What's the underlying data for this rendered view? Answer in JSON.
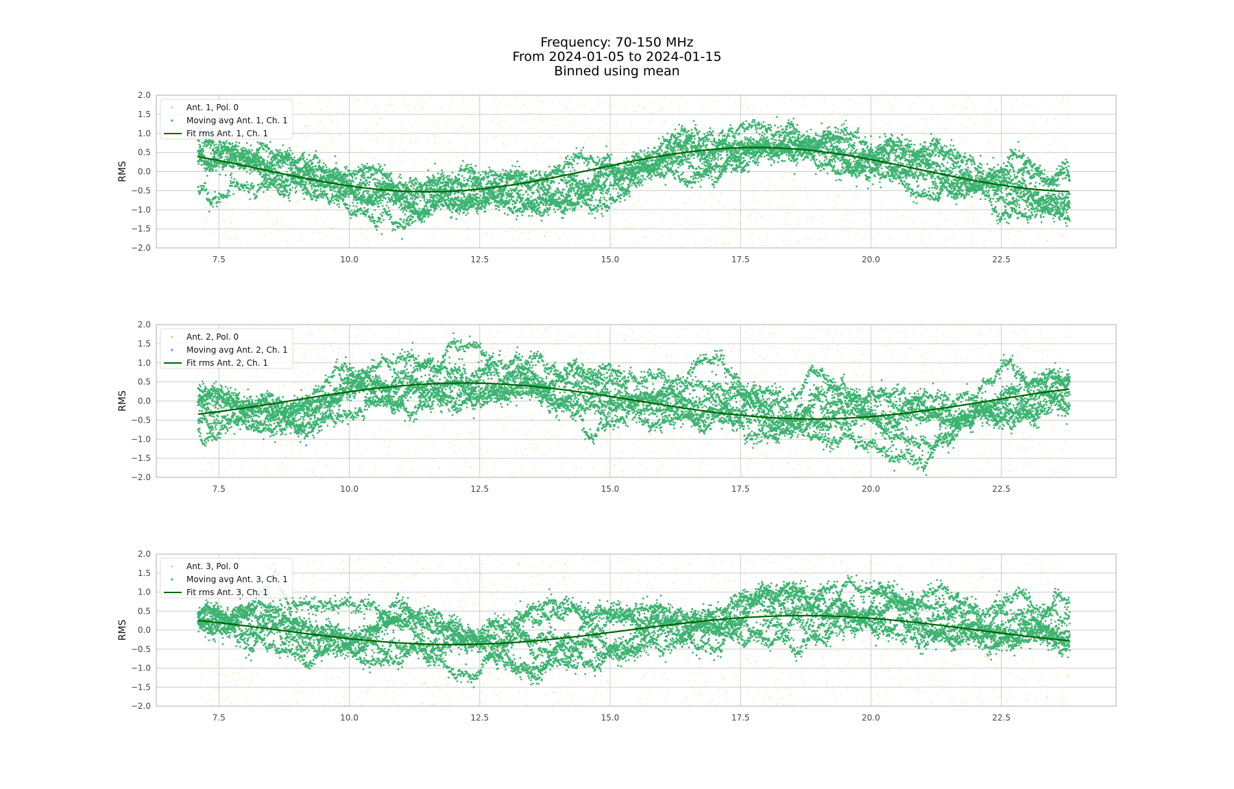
{
  "figure": {
    "title_lines": [
      "Frequency: 70-150 MHz",
      "From 2024-01-05 to 2024-01-15",
      "Binned using mean"
    ],
    "colors": {
      "raw": "#c8c832",
      "moving_avg": "#3cb371",
      "fit": "#006400",
      "grid": "#cccccc",
      "axes": "#bbbbbb"
    }
  },
  "chart_data": [
    {
      "type": "scatter",
      "ylabel": "RMS",
      "xlim": [
        6.3,
        24.7
      ],
      "ylim": [
        -2.0,
        2.0
      ],
      "xticks": [
        "7.5",
        "10.0",
        "12.5",
        "15.0",
        "17.5",
        "20.0",
        "22.5"
      ],
      "yticks": [
        "2.0",
        "1.5",
        "1.0",
        "0.5",
        "0.0",
        "−0.5",
        "−1.0",
        "−1.5",
        "−2.0"
      ],
      "grid": true,
      "legend_position": "upper-left",
      "series": [
        {
          "name": "Ant. 1, Pol. 0",
          "kind": "raw-scatter",
          "x_range": [
            7.1,
            23.8
          ],
          "y_range": [
            -2.0,
            2.0
          ]
        },
        {
          "name": "Moving avg Ant. 1, Ch. 1",
          "kind": "moving-avg-scatter",
          "x_range": [
            7.1,
            23.8
          ],
          "typical_spread": 0.5
        },
        {
          "name": "Fit rms Ant. 1, Ch. 1",
          "kind": "fit-line",
          "amplitude": 0.58,
          "center": 0.05,
          "peak_x": 17.8,
          "period": 12.6,
          "x_range": [
            7.1,
            23.8
          ]
        }
      ]
    },
    {
      "type": "scatter",
      "ylabel": "RMS",
      "xlim": [
        6.3,
        24.7
      ],
      "ylim": [
        -2.0,
        2.0
      ],
      "xticks": [
        "7.5",
        "10.0",
        "12.5",
        "15.0",
        "17.5",
        "20.0",
        "22.5"
      ],
      "yticks": [
        "2.0",
        "1.5",
        "1.0",
        "0.5",
        "0.0",
        "−0.5",
        "−1.0",
        "−1.5",
        "−2.0"
      ],
      "grid": true,
      "legend_position": "upper-left",
      "series": [
        {
          "name": "Ant. 2, Pol. 0",
          "kind": "raw-scatter",
          "x_range": [
            7.1,
            23.8
          ],
          "y_range": [
            -2.0,
            2.0
          ]
        },
        {
          "name": "Moving avg Ant. 2, Ch. 1",
          "kind": "moving-avg-scatter",
          "x_range": [
            7.1,
            23.8
          ],
          "typical_spread": 0.5
        },
        {
          "name": "Fit rms Ant. 2, Ch. 1",
          "kind": "fit-line",
          "amplitude": 0.47,
          "center": 0.0,
          "peak_x": 12.2,
          "period": 13.4,
          "x_range": [
            7.1,
            23.8
          ]
        }
      ]
    },
    {
      "type": "scatter",
      "ylabel": "RMS",
      "xlim": [
        6.3,
        24.7
      ],
      "ylim": [
        -2.0,
        2.0
      ],
      "xticks": [
        "7.5",
        "10.0",
        "12.5",
        "15.0",
        "17.5",
        "20.0",
        "22.5"
      ],
      "yticks": [
        "2.0",
        "1.5",
        "1.0",
        "0.5",
        "0.0",
        "−0.5",
        "−1.0",
        "−1.5",
        "−2.0"
      ],
      "grid": true,
      "legend_position": "upper-left",
      "series": [
        {
          "name": "Ant. 3, Pol. 0",
          "kind": "raw-scatter",
          "x_range": [
            7.1,
            23.8
          ],
          "y_range": [
            -2.0,
            2.0
          ]
        },
        {
          "name": "Moving avg Ant. 3, Ch. 1",
          "kind": "moving-avg-scatter",
          "x_range": [
            7.1,
            23.8
          ],
          "typical_spread": 0.5
        },
        {
          "name": "Fit rms Ant. 3, Ch. 1",
          "kind": "fit-line",
          "amplitude": 0.38,
          "center": 0.0,
          "peak_x": 18.7,
          "period": 13.4,
          "x_range": [
            7.1,
            23.8
          ]
        }
      ]
    }
  ]
}
